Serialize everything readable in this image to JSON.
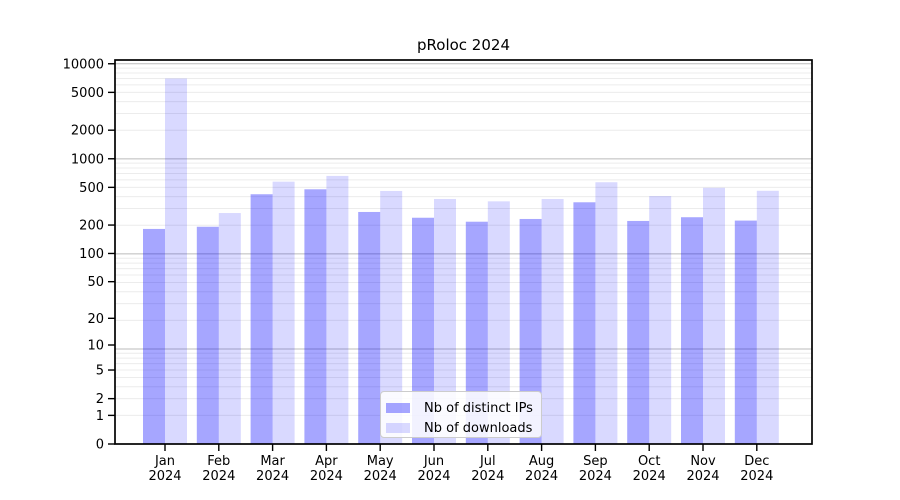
{
  "chart_data": {
    "type": "bar",
    "title": "pRoloc 2024",
    "categories": [
      "Jan",
      "Feb",
      "Mar",
      "Apr",
      "May",
      "Jun",
      "Jul",
      "Aug",
      "Sep",
      "Oct",
      "Nov",
      "Dec"
    ],
    "x_tick_line2": "2024",
    "series": [
      {
        "name": "Nb of distinct IPs",
        "color": "rgba(0,0,255,0.35)",
        "values": [
          182,
          192,
          423,
          477,
          275,
          239,
          217,
          232,
          348,
          221,
          242,
          223
        ]
      },
      {
        "name": "Nb of downloads",
        "color": "rgba(0,0,255,0.15)",
        "values": [
          7000,
          268,
          574,
          660,
          458,
          377,
          356,
          377,
          566,
          405,
          495,
          460
        ]
      }
    ],
    "yscale": "log10(value+1)",
    "yticks": [
      0,
      1,
      2,
      5,
      10,
      20,
      50,
      100,
      200,
      500,
      1000,
      2000,
      5000,
      10000
    ],
    "ylim": [
      0,
      10800
    ],
    "grid": true,
    "legend_position": "lower center"
  },
  "colors": {
    "background": "#ffffff",
    "bar_distinct_ips": "rgba(0,0,255,0.35)",
    "bar_downloads": "rgba(0,0,255,0.15)",
    "grid_major": "#bbbbbb",
    "grid_minor": "#ececec",
    "axis_line": "#000000",
    "tick_label": "#000000"
  }
}
